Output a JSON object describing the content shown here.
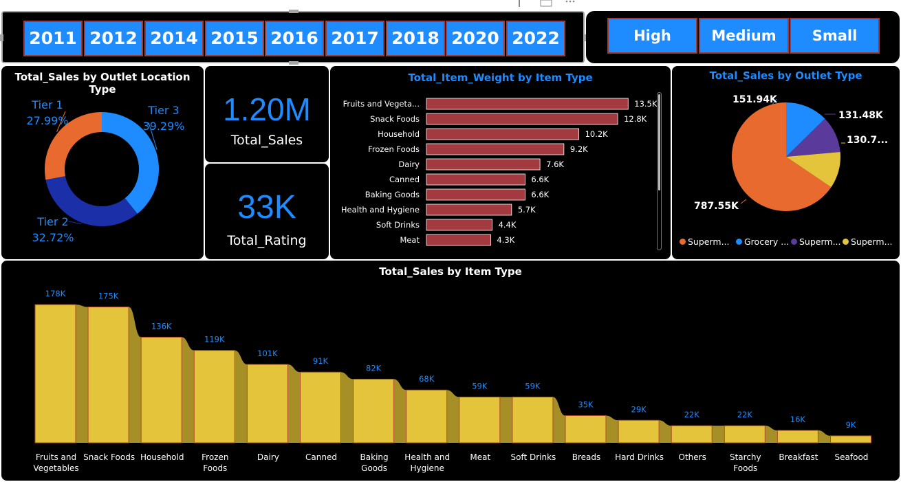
{
  "year_slicer": {
    "years": [
      "2011",
      "2012",
      "2014",
      "2015",
      "2016",
      "2017",
      "2018",
      "2020",
      "2022"
    ]
  },
  "size_slicer": {
    "options": [
      "High",
      "Medium",
      "Small"
    ]
  },
  "colors": {
    "accent_blue": "#1e8bff",
    "tier1": "#e96a2f",
    "tier2": "#1a2fa8",
    "tier3": "#1e8bff",
    "bar_red": "#a33a40",
    "bar_yellow": "#e3c43a",
    "ribbon": "#a68f27",
    "pie_orange": "#e96a2f",
    "pie_blue": "#1e8bff",
    "pie_purple": "#5a3a9a",
    "pie_yellow": "#e3c43a"
  },
  "kpis": {
    "total_sales": {
      "value": "1.20M",
      "label": "Total_Sales"
    },
    "total_rating": {
      "value": "33K",
      "label": "Total_Rating"
    }
  },
  "chart_data": [
    {
      "type": "pie",
      "variant": "donut",
      "title": "Total_Sales by Outlet Location Type",
      "slices": [
        {
          "label": "Tier 3",
          "value": 39.29,
          "display": "39.29%",
          "color": "#1e8bff"
        },
        {
          "label": "Tier 2",
          "value": 32.72,
          "display": "32.72%",
          "color": "#1a2fa8"
        },
        {
          "label": "Tier 1",
          "value": 27.99,
          "display": "27.99%",
          "color": "#e96a2f"
        }
      ]
    },
    {
      "type": "bar",
      "orientation": "horizontal",
      "title": "Total_Item_Weight by Item Type",
      "categories": [
        "Fruits and Vegeta...",
        "Snack Foods",
        "Household",
        "Frozen Foods",
        "Dairy",
        "Canned",
        "Baking Goods",
        "Health and Hygiene",
        "Soft Drinks",
        "Meat"
      ],
      "values": [
        13500,
        12800,
        10200,
        9200,
        7600,
        6600,
        6600,
        5700,
        4400,
        4300
      ],
      "labels": [
        "13.5K",
        "12.8K",
        "10.2K",
        "9.2K",
        "7.6K",
        "6.6K",
        "6.6K",
        "5.7K",
        "4.4K",
        "4.3K"
      ],
      "xlim": [
        0,
        14500
      ]
    },
    {
      "type": "pie",
      "title": "Total_Sales by Outlet Type",
      "slices": [
        {
          "label": "Superm...",
          "value": 787.55,
          "display": "787.55K",
          "color": "#e96a2f"
        },
        {
          "label": "Grocery ...",
          "value": 151.94,
          "display": "151.94K",
          "color": "#1e8bff"
        },
        {
          "label": "Superm...",
          "value": 131.48,
          "display": "131.48K",
          "color": "#5a3a9a"
        },
        {
          "label": "Superm...",
          "value": 130.7,
          "display": "130.7...",
          "color": "#e3c43a"
        }
      ],
      "legend": "bottom"
    },
    {
      "type": "bar",
      "variant": "ribbon",
      "title": "Total_Sales by Item Type",
      "categories": [
        "Fruits and Vegetables",
        "Snack Foods",
        "Household",
        "Frozen Foods",
        "Dairy",
        "Canned",
        "Baking Goods",
        "Health and Hygiene",
        "Meat",
        "Soft Drinks",
        "Breads",
        "Hard Drinks",
        "Others",
        "Starchy Foods",
        "Breakfast",
        "Seafood"
      ],
      "category_lines": [
        [
          "Fruits and",
          "Vegetables"
        ],
        [
          "Snack Foods"
        ],
        [
          "Household"
        ],
        [
          "Frozen",
          "Foods"
        ],
        [
          "Dairy"
        ],
        [
          "Canned"
        ],
        [
          "Baking",
          "Goods"
        ],
        [
          "Health and",
          "Hygiene"
        ],
        [
          "Meat"
        ],
        [
          "Soft Drinks"
        ],
        [
          "Breads"
        ],
        [
          "Hard Drinks"
        ],
        [
          "Others"
        ],
        [
          "Starchy",
          "Foods"
        ],
        [
          "Breakfast"
        ],
        [
          "Seafood"
        ]
      ],
      "values": [
        178,
        175,
        136,
        119,
        101,
        91,
        82,
        68,
        59,
        59,
        35,
        29,
        22,
        22,
        16,
        9
      ],
      "labels": [
        "178K",
        "175K",
        "136K",
        "119K",
        "101K",
        "91K",
        "82K",
        "68K",
        "59K",
        "59K",
        "35K",
        "29K",
        "22K",
        "22K",
        "16K",
        "9K"
      ],
      "unit": "K",
      "ylim": [
        0,
        178
      ]
    }
  ]
}
